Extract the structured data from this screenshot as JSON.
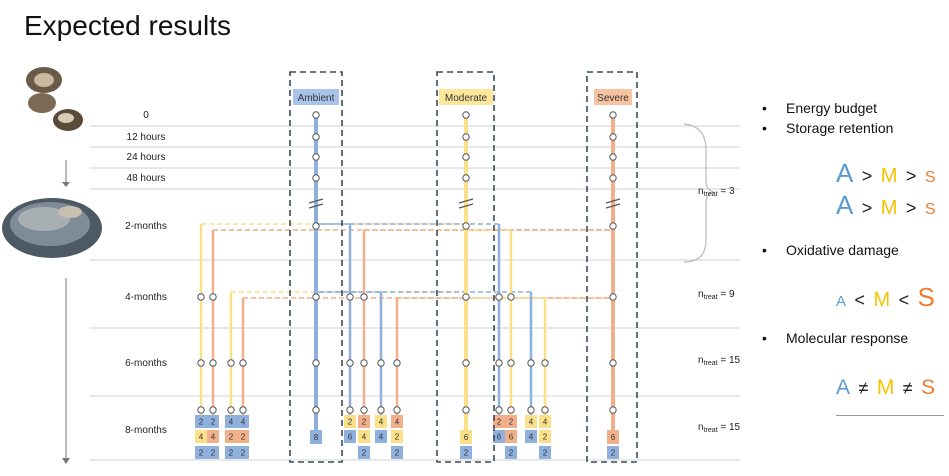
{
  "title": "Expected results",
  "timepoints": [
    "0",
    "12 hours",
    "24 hours",
    "48 hours",
    "2-months",
    "4-months",
    "6-months",
    "8-months"
  ],
  "treatments": [
    {
      "name": "Ambient",
      "color": "#a9c4ea"
    },
    {
      "name": "Moderate",
      "color": "#fde79a"
    },
    {
      "name": "Severe",
      "color": "#f7c3a0"
    }
  ],
  "n_treat": [
    {
      "prefix": "n",
      "sub": "treat",
      "value": "= 3"
    },
    {
      "prefix": "n",
      "sub": "treat",
      "value": "= 9"
    },
    {
      "prefix": "n",
      "sub": "treat",
      "value": "= 15"
    },
    {
      "prefix": "n",
      "sub": "treat",
      "value": "= 15"
    }
  ],
  "bullets": [
    "Energy budget",
    "Storage retention",
    "Oxidative damage",
    "Molecular response"
  ],
  "inequalities": {
    "energy": [
      "A",
      ">",
      "M",
      ">",
      "S"
    ],
    "storage": [
      "A",
      ">",
      "M",
      ">",
      "S"
    ],
    "oxidative": [
      "A",
      "<",
      "M",
      "<",
      "S"
    ],
    "molecular": [
      "A",
      "≠",
      "M",
      "≠",
      "S"
    ]
  },
  "colors": {
    "ambient": "#8fb0dd",
    "moderate": "#fbe08a",
    "severe": "#f2b08a",
    "ambient_text": "#5b9bd5",
    "moderate_text": "#f5c400",
    "severe_text": "#ed7d31"
  },
  "boxes": {
    "ambient_side": [
      [
        "2",
        "2",
        "4",
        "4"
      ],
      [
        "4",
        "4",
        "2",
        "2"
      ],
      [
        "2",
        "2",
        "2",
        "2"
      ]
    ],
    "ambient_center": "8",
    "moderate_side": [
      [
        "2",
        "2",
        "4",
        "4"
      ],
      [
        "6",
        "4",
        "4",
        "2"
      ],
      [
        "2",
        "2"
      ]
    ],
    "moderate_center": [
      "6",
      "2"
    ],
    "severe_side": [
      [
        "2",
        "2",
        "4",
        "4"
      ],
      [
        "6",
        "6",
        "4",
        "2"
      ],
      [
        "2",
        "2"
      ]
    ],
    "severe_center": [
      "6",
      "2"
    ]
  }
}
